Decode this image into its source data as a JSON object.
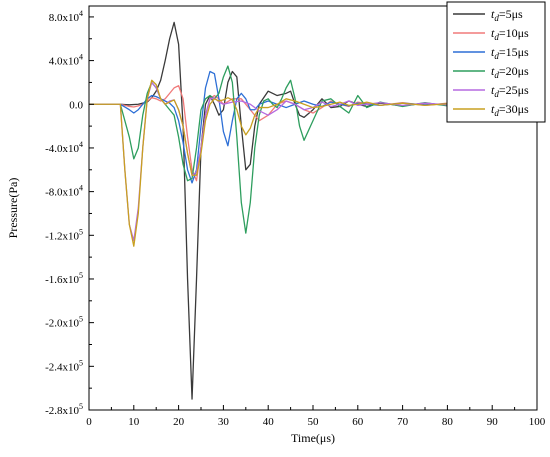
{
  "chart_data": {
    "type": "line",
    "title": "",
    "xlabel": "Time(μs)",
    "ylabel": "Pressure(Pa)",
    "xlim": [
      0,
      100
    ],
    "ylim": [
      -280000,
      90000
    ],
    "xticks": [
      0,
      10,
      20,
      30,
      40,
      50,
      60,
      70,
      80,
      90,
      100
    ],
    "xtick_labels": [
      "0",
      "10",
      "20",
      "30",
      "40",
      "50",
      "60",
      "70",
      "80",
      "90",
      "100"
    ],
    "yticks": [
      80000,
      40000,
      0,
      -40000,
      -80000,
      -120000,
      -160000,
      -200000,
      -240000,
      -280000
    ],
    "ytick_labels": [
      {
        "m": "8.0x10",
        "e": "4"
      },
      {
        "m": "4.0x10",
        "e": "4"
      },
      {
        "m": "0.0",
        "e": ""
      },
      {
        "m": "-4.0x10",
        "e": "4"
      },
      {
        "m": "-8.0x10",
        "e": "4"
      },
      {
        "m": "-1.2x10",
        "e": "5"
      },
      {
        "m": "-1.6x10",
        "e": "5"
      },
      {
        "m": "-2.0x10",
        "e": "5"
      },
      {
        "m": "-2.4x10",
        "e": "5"
      },
      {
        "m": "-2.8x10",
        "e": "5"
      }
    ],
    "grid": false,
    "legend_position": "top-right",
    "series": [
      {
        "name": {
          "t": "t",
          "sub": "d",
          "rest": "=5μs"
        },
        "color": "#3a3a3a",
        "x": [
          0,
          7,
          9,
          11,
          12,
          13,
          14,
          15,
          16,
          17,
          18,
          19,
          20,
          21,
          22,
          23,
          24,
          25,
          26,
          27,
          28,
          29,
          30,
          31,
          32,
          33,
          34,
          35,
          36,
          37,
          38,
          40,
          42,
          44,
          45,
          46,
          47,
          48,
          50,
          52,
          54,
          56,
          58,
          60,
          62,
          65,
          70,
          75,
          80,
          85,
          90,
          95,
          100
        ],
        "y": [
          0,
          0,
          -500,
          0,
          1000,
          2000,
          6000,
          12000,
          22000,
          40000,
          60000,
          75000,
          55000,
          -20000,
          -160000,
          -270000,
          -160000,
          -40000,
          0,
          8000,
          0,
          -10000,
          -5000,
          20000,
          30000,
          25000,
          -20000,
          -60000,
          -55000,
          -20000,
          0,
          12000,
          8000,
          10000,
          12000,
          0,
          -10000,
          -12000,
          -5000,
          5000,
          -3000,
          -2000,
          3000,
          0,
          -2000,
          1000,
          -1500,
          1000,
          -1000,
          1000,
          -1000,
          0,
          -500
        ]
      },
      {
        "name": {
          "t": "t",
          "sub": "d",
          "rest": "=10μs"
        },
        "color": "#f07a7a",
        "x": [
          0,
          7,
          9,
          10,
          11,
          12,
          13,
          14,
          15,
          16,
          17,
          18,
          19,
          20,
          21,
          22,
          23,
          24,
          25,
          26,
          27,
          28,
          29,
          30,
          32,
          34,
          36,
          38,
          40,
          42,
          44,
          46,
          48,
          50,
          52,
          54,
          56,
          58,
          60,
          65,
          70,
          75,
          80,
          85,
          90,
          95,
          100
        ],
        "y": [
          0,
          0,
          -2000,
          -2500,
          -1500,
          0,
          3000,
          6000,
          5000,
          3000,
          5000,
          10000,
          15000,
          17000,
          5000,
          -30000,
          -60000,
          -70000,
          -40000,
          -10000,
          5000,
          8000,
          5000,
          0,
          5000,
          5000,
          -5000,
          -15000,
          -10000,
          0,
          3000,
          0,
          -5000,
          -8000,
          -3000,
          3000,
          0,
          -2000,
          2000,
          -1000,
          1500,
          -1000,
          1000,
          -500,
          1000,
          -500,
          0
        ]
      },
      {
        "name": {
          "t": "t",
          "sub": "d",
          "rest": "=15μs"
        },
        "color": "#2d6fd6",
        "x": [
          0,
          7,
          9,
          10,
          11,
          12,
          13,
          14,
          15,
          16,
          17,
          18,
          19,
          20,
          21,
          22,
          23,
          24,
          25,
          26,
          27,
          28,
          29,
          30,
          31,
          32,
          33,
          34,
          35,
          36,
          37,
          38,
          40,
          42,
          44,
          46,
          48,
          50,
          52,
          54,
          56,
          58,
          60,
          65,
          70,
          75,
          80,
          85,
          90,
          95,
          100
        ],
        "y": [
          0,
          0,
          -5000,
          -8000,
          -5000,
          0,
          5000,
          8000,
          7000,
          5000,
          3000,
          1000,
          -3000,
          -15000,
          -35000,
          -60000,
          -72000,
          -60000,
          -20000,
          15000,
          30000,
          28000,
          5000,
          -25000,
          -38000,
          -15000,
          5000,
          10000,
          5000,
          -5000,
          -5000,
          0,
          3000,
          0,
          -3000,
          0,
          3000,
          0,
          -2000,
          2000,
          0,
          -1500,
          1000,
          -1000,
          1000,
          -500,
          500,
          -500,
          500,
          -500,
          0
        ]
      },
      {
        "name": {
          "t": "t",
          "sub": "d",
          "rest": "=20μs"
        },
        "color": "#2e9e5e",
        "x": [
          0,
          7,
          9,
          10,
          11,
          12,
          13,
          14,
          15,
          16,
          17,
          18,
          19,
          20,
          21,
          22,
          23,
          24,
          25,
          26,
          27,
          28,
          29,
          30,
          31,
          32,
          33,
          34,
          35,
          36,
          37,
          38,
          39,
          40,
          41,
          42,
          43,
          44,
          45,
          46,
          47,
          48,
          50,
          52,
          54,
          56,
          58,
          60,
          62,
          65,
          70,
          75,
          80,
          85,
          90,
          95,
          100
        ],
        "y": [
          0,
          0,
          -30000,
          -50000,
          -40000,
          -10000,
          10000,
          20000,
          15000,
          5000,
          0,
          -5000,
          -10000,
          -30000,
          -55000,
          -70000,
          -68000,
          -40000,
          -5000,
          5000,
          8000,
          5000,
          10000,
          25000,
          35000,
          20000,
          -30000,
          -90000,
          -118000,
          -90000,
          -40000,
          -10000,
          3000,
          5000,
          0,
          -3000,
          5000,
          15000,
          22000,
          5000,
          -20000,
          -33000,
          -15000,
          3000,
          5000,
          -2000,
          -8000,
          8000,
          -3000,
          2000,
          -2000,
          1500,
          -1500,
          1000,
          -1000,
          500,
          -500
        ]
      },
      {
        "name": {
          "t": "t",
          "sub": "d",
          "rest": "=25μs"
        },
        "color": "#b56ae0",
        "x": [
          0,
          7,
          8,
          9,
          10,
          11,
          12,
          13,
          14,
          15,
          16,
          17,
          18,
          19,
          20,
          21,
          22,
          23,
          24,
          25,
          26,
          27,
          28,
          29,
          30,
          32,
          34,
          36,
          38,
          40,
          42,
          44,
          46,
          48,
          50,
          52,
          54,
          56,
          58,
          60,
          65,
          70,
          75,
          80,
          85,
          90,
          95,
          100
        ],
        "y": [
          0,
          0,
          -60000,
          -110000,
          -125000,
          -95000,
          -40000,
          5000,
          20000,
          15000,
          5000,
          0,
          3000,
          4000,
          -5000,
          -20000,
          -45000,
          -65000,
          -62000,
          -40000,
          -10000,
          5000,
          6000,
          2000,
          0,
          2000,
          3000,
          0,
          -6000,
          -10000,
          -5000,
          3000,
          0,
          -5000,
          -3000,
          2000,
          -2000,
          0,
          3000,
          -1000,
          1500,
          -1000,
          1000,
          -500,
          500,
          -500,
          500,
          0
        ]
      },
      {
        "name": {
          "t": "t",
          "sub": "d",
          "rest": "=30μs"
        },
        "color": "#c8a020",
        "x": [
          0,
          7,
          8,
          9,
          10,
          11,
          12,
          13,
          14,
          15,
          16,
          17,
          18,
          19,
          20,
          21,
          22,
          23,
          24,
          25,
          26,
          27,
          28,
          29,
          30,
          31,
          32,
          33,
          34,
          35,
          36,
          37,
          38,
          40,
          42,
          44,
          46,
          48,
          50,
          52,
          54,
          56,
          58,
          60,
          62,
          65,
          70,
          75,
          80,
          85,
          90,
          95,
          100
        ],
        "y": [
          0,
          0,
          -60000,
          -110000,
          -130000,
          -100000,
          -40000,
          5000,
          22000,
          18000,
          5000,
          0,
          2000,
          4000,
          -5000,
          -20000,
          -45000,
          -65000,
          -65000,
          -45000,
          -15000,
          0,
          5000,
          3000,
          4000,
          6000,
          4000,
          -5000,
          -20000,
          -28000,
          -22000,
          -10000,
          -3000,
          -3000,
          0,
          5000,
          3000,
          0,
          -3000,
          -2000,
          0,
          2000,
          -1000,
          0,
          2000,
          -1000,
          1000,
          -1000,
          500,
          -500,
          500,
          -500,
          0
        ]
      }
    ]
  }
}
